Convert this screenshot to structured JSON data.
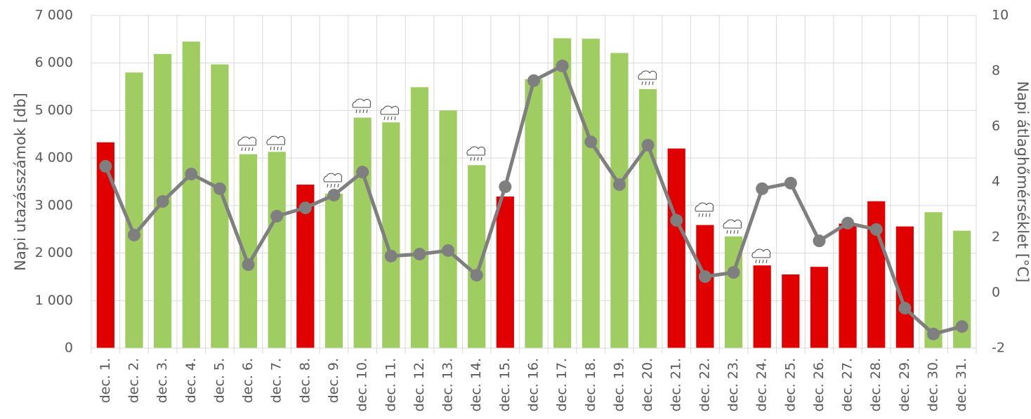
{
  "chart_data": {
    "type": "bar-line",
    "y_label": "Napi utazásszámok [db]",
    "y2_label": "Napi átlaghőmérséklet [°C]",
    "categories": [
      "dec. 1.",
      "dec. 2.",
      "dec. 3.",
      "dec. 4.",
      "dec. 5.",
      "dec. 6.",
      "dec. 7.",
      "dec. 8.",
      "dec. 9.",
      "dec. 10.",
      "dec. 11.",
      "dec. 12.",
      "dec. 13.",
      "dec. 14.",
      "dec. 15.",
      "dec. 16.",
      "dec. 17.",
      "dec. 18.",
      "dec. 19.",
      "dec. 20.",
      "dec. 21.",
      "dec. 22.",
      "dec. 23.",
      "dec. 24.",
      "dec. 25.",
      "dec. 26.",
      "dec. 27.",
      "dec. 28.",
      "dec. 29.",
      "dec. 30.",
      "dec. 31."
    ],
    "ylim": [
      0,
      7000
    ],
    "yticks": [
      0,
      {
        "value": 1000,
        "label": "1 000"
      },
      {
        "value": 2000,
        "label": "2 000"
      },
      {
        "value": 3000,
        "label": "3 000"
      },
      {
        "value": 4000,
        "label": "4 000"
      },
      {
        "value": 5000,
        "label": "5 000"
      },
      {
        "value": 6000,
        "label": "6 000"
      },
      {
        "value": 7000,
        "label": "7 000"
      }
    ],
    "y2lim": [
      -2,
      10
    ],
    "y2ticks": [
      -2,
      0,
      2,
      4,
      6,
      8,
      10
    ],
    "grid": true,
    "series": [
      {
        "kind": "bar",
        "axis": "y",
        "colors": [
          "#e00000",
          "#9fcd62",
          "#9fcd62",
          "#9fcd62",
          "#9fcd62",
          "#9fcd62",
          "#9fcd62",
          "#e00000",
          "#9fcd62",
          "#9fcd62",
          "#9fcd62",
          "#9fcd62",
          "#9fcd62",
          "#9fcd62",
          "#e00000",
          "#9fcd62",
          "#9fcd62",
          "#9fcd62",
          "#9fcd62",
          "#9fcd62",
          "#e00000",
          "#e00000",
          "#9fcd62",
          "#e00000",
          "#e00000",
          "#e00000",
          "#e00000",
          "#e00000",
          "#e00000",
          "#9fcd62",
          "#9fcd62"
        ],
        "values": [
          4330,
          5800,
          6190,
          6450,
          5970,
          4080,
          4130,
          3440,
          3250,
          4850,
          4750,
          5490,
          5000,
          3850,
          3190,
          5660,
          6520,
          6510,
          6210,
          5450,
          4200,
          2590,
          2350,
          1740,
          1550,
          1710,
          2620,
          3090,
          2560,
          2860,
          2470
        ]
      },
      {
        "kind": "line",
        "axis": "y2",
        "color": "#7f7f7f",
        "values": [
          4.56,
          2.08,
          3.29,
          4.28,
          3.75,
          1.01,
          2.76,
          3.06,
          3.52,
          4.35,
          1.32,
          1.39,
          1.52,
          0.63,
          3.82,
          7.65,
          8.18,
          5.44,
          3.9,
          5.32,
          2.61,
          0.58,
          0.73,
          3.75,
          3.95,
          1.87,
          2.51,
          2.28,
          -0.56,
          -1.49,
          -1.22
        ]
      }
    ]
  }
}
